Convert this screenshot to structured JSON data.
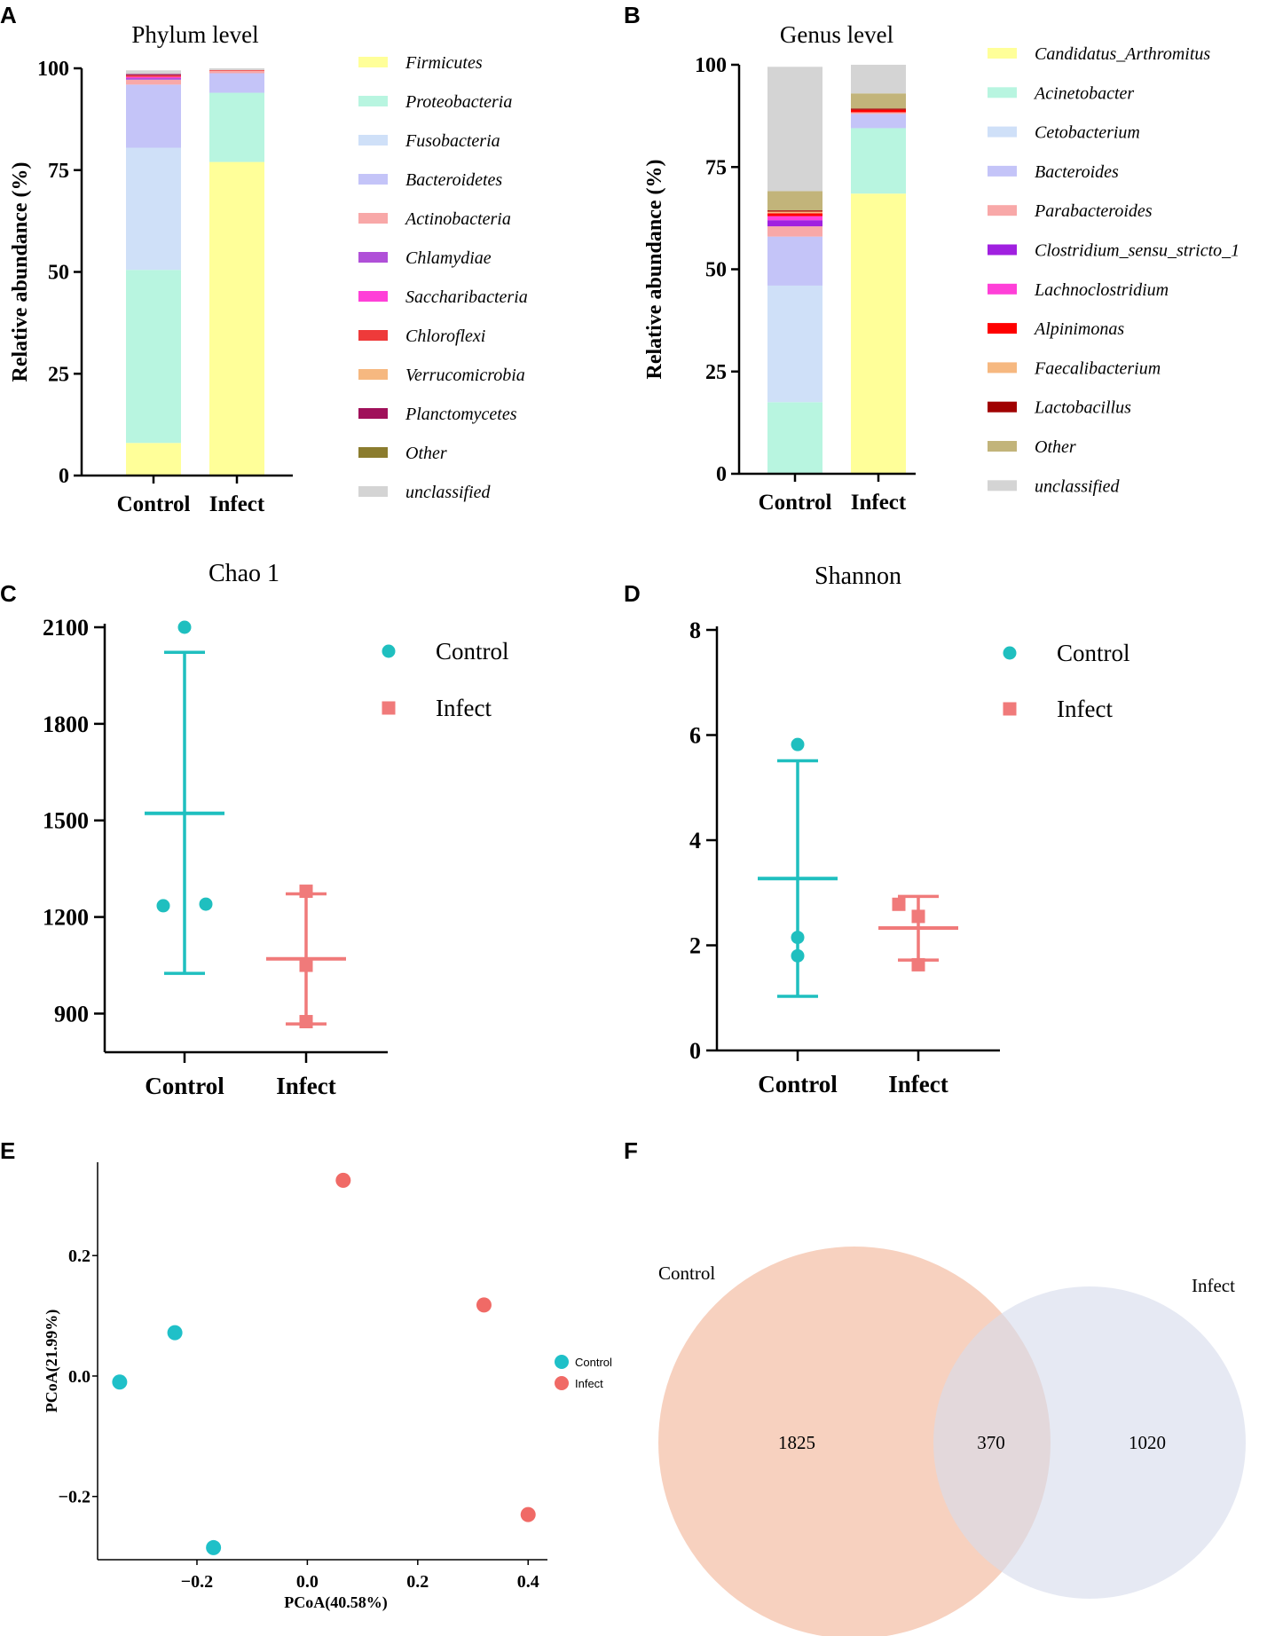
{
  "figure": {
    "panel_letters": [
      "A",
      "B",
      "C",
      "D",
      "E",
      "F"
    ]
  },
  "colors": {
    "Firmicutes": "#ffff99",
    "Proteobacteria": "#b8f5e0",
    "Fusobacteria": "#cfe0f8",
    "Bacteroidetes": "#c4c4f8",
    "Actinobacteria": "#f8a8a8",
    "Chlamydiae": "#b050d8",
    "Saccharibacteria": "#ff40d8",
    "Chloroflexi": "#ee3a3a",
    "Verrucomicrobia": "#f6b880",
    "Planctomycetes": "#a0105a",
    "Other": "#8b7c2e",
    "unclassified": "#d4d4d4",
    "Candidatus_Arthromitus": "#ffff99",
    "Acinetobacter": "#b8f5e0",
    "Cetobacterium": "#cfe0f8",
    "Bacteroides": "#c4c4f8",
    "Parabacteroides": "#f8a8a8",
    "Clostridium_sensu_stricto_1": "#a020e0",
    "Lachnoclostridium": "#ff40d8",
    "Alpinimonas": "#ff0000",
    "Faecalibacterium": "#f6b880",
    "Lactobacillus": "#a00000",
    "Other_genus": "#c2b47a",
    "control": "#1fbfbf",
    "infect": "#f07a7a",
    "control_pcoa": "#1fc0c8",
    "infect_pcoa": "#f06a66",
    "venn_control": "#f6c9b4",
    "venn_infect": "#d6dcec"
  },
  "chart_data": [
    {
      "panel": "A",
      "type": "bar",
      "stacked": true,
      "title": "Phylum level",
      "categories": [
        "Control",
        "Infect"
      ],
      "ylabel": "Relative abundance (%)",
      "xlabel": "",
      "ylim": [
        0,
        100
      ],
      "yticks": [
        0,
        25,
        50,
        75,
        100
      ],
      "series": [
        {
          "name": "Firmicutes",
          "color_key": "Firmicutes",
          "values": [
            8,
            77
          ]
        },
        {
          "name": "Proteobacteria",
          "color_key": "Proteobacteria",
          "values": [
            42.5,
            17
          ]
        },
        {
          "name": "Fusobacteria",
          "color_key": "Fusobacteria",
          "values": [
            30,
            0
          ]
        },
        {
          "name": "Bacteroidetes",
          "color_key": "Bacteroidetes",
          "values": [
            15.5,
            4.8
          ]
        },
        {
          "name": "Actinobacteria",
          "color_key": "Actinobacteria",
          "values": [
            1.2,
            0.6
          ]
        },
        {
          "name": "Chlamydiae",
          "color_key": "Chlamydiae",
          "values": [
            0.4,
            0
          ]
        },
        {
          "name": "Saccharibacteria",
          "color_key": "Saccharibacteria",
          "values": [
            0.3,
            0
          ]
        },
        {
          "name": "Chloroflexi",
          "color_key": "Chloroflexi",
          "values": [
            0.4,
            0.2
          ]
        },
        {
          "name": "Verrucomicrobia",
          "color_key": "Verrucomicrobia",
          "values": [
            0,
            0
          ]
        },
        {
          "name": "Planctomycetes",
          "color_key": "Planctomycetes",
          "values": [
            0.3,
            0
          ]
        },
        {
          "name": "Other",
          "color_key": "Other",
          "values": [
            0,
            0
          ]
        },
        {
          "name": "unclassified",
          "color_key": "unclassified",
          "values": [
            0.9,
            0.4
          ]
        }
      ]
    },
    {
      "panel": "B",
      "type": "bar",
      "stacked": true,
      "title": "Genus level",
      "categories": [
        "Control",
        "Infect"
      ],
      "ylabel": "Relative abundance (%)",
      "xlabel": "",
      "ylim": [
        0,
        100
      ],
      "yticks": [
        0,
        25,
        50,
        75,
        100
      ],
      "series": [
        {
          "name": "Candidatus_Arthromitus",
          "color_key": "Candidatus_Arthromitus",
          "values": [
            0,
            68.5
          ]
        },
        {
          "name": "Acinetobacter",
          "color_key": "Acinetobacter",
          "values": [
            17.5,
            16
          ]
        },
        {
          "name": "Cetobacterium",
          "color_key": "Cetobacterium",
          "values": [
            28.5,
            0
          ]
        },
        {
          "name": "Bacteroides",
          "color_key": "Bacteroides",
          "values": [
            12,
            3.5
          ]
        },
        {
          "name": "Parabacteroides",
          "color_key": "Parabacteroides",
          "values": [
            2.5,
            0.4
          ]
        },
        {
          "name": "Clostridium_sensu_stricto_1",
          "color_key": "Clostridium_sensu_stricto_1",
          "values": [
            1.5,
            0
          ]
        },
        {
          "name": "Lachnoclostridium",
          "color_key": "Lachnoclostridium",
          "values": [
            1.0,
            0
          ]
        },
        {
          "name": "Alpinimonas",
          "color_key": "Alpinimonas",
          "values": [
            0.7,
            0.6
          ]
        },
        {
          "name": "Faecalibacterium",
          "color_key": "Faecalibacterium",
          "values": [
            0.4,
            0
          ]
        },
        {
          "name": "Lactobacillus",
          "color_key": "Lactobacillus",
          "values": [
            0.3,
            0.3
          ]
        },
        {
          "name": "Other",
          "color_key": "Other_genus",
          "values": [
            4.7,
            3.7
          ]
        },
        {
          "name": "unclassified",
          "color_key": "unclassified",
          "values": [
            30.4,
            7
          ]
        }
      ]
    },
    {
      "panel": "C",
      "type": "scatter",
      "title": "Chao 1",
      "categories": [
        "Control",
        "Infect"
      ],
      "ylabel": "",
      "xlabel": "",
      "ylim": [
        780,
        2100
      ],
      "yticks": [
        900,
        1200,
        1500,
        1800,
        2100
      ],
      "groups": [
        {
          "name": "Control",
          "marker": "circle",
          "color_key": "control",
          "points": [
            2100,
            1235,
            1240
          ],
          "jitter": [
            0,
            -0.24,
            0.24
          ],
          "mean": 1522,
          "sd_low": 1025,
          "sd_high": 2022
        },
        {
          "name": "Infect",
          "marker": "square",
          "color_key": "infect",
          "points": [
            1280,
            1050,
            875
          ],
          "jitter": [
            0,
            0,
            0
          ],
          "mean": 1070,
          "sd_low": 868,
          "sd_high": 1272
        }
      ]
    },
    {
      "panel": "D",
      "type": "scatter",
      "title": "Shannon",
      "categories": [
        "Control",
        "Infect"
      ],
      "ylabel": "",
      "xlabel": "",
      "ylim": [
        0,
        8
      ],
      "yticks": [
        0,
        2,
        4,
        6,
        8
      ],
      "groups": [
        {
          "name": "Control",
          "marker": "circle",
          "color_key": "control",
          "points": [
            5.82,
            2.15,
            1.8
          ],
          "jitter": [
            0,
            0,
            0
          ],
          "mean": 3.27,
          "sd_low": 1.03,
          "sd_high": 5.51
        },
        {
          "name": "Infect",
          "marker": "square",
          "color_key": "infect",
          "points": [
            2.78,
            2.55,
            1.63
          ],
          "jitter": [
            -0.22,
            0,
            0
          ],
          "mean": 2.33,
          "sd_low": 1.72,
          "sd_high": 2.93
        }
      ]
    },
    {
      "panel": "E",
      "type": "scatter",
      "title": "",
      "xlabel": "PCoA(40.58%)",
      "ylabel": "PCoA(21.99%)",
      "xlim": [
        -0.38,
        0.435
      ],
      "ylim": [
        -0.305,
        0.355
      ],
      "xticks": [
        -0.2,
        0.0,
        0.2,
        0.4
      ],
      "yticks": [
        -0.2,
        0.0,
        0.2
      ],
      "xtick_labels": [
        "−0.2",
        "0.0",
        "0.2",
        "0.4"
      ],
      "ytick_labels": [
        "−0.2",
        "0.0",
        "0.2"
      ],
      "series": [
        {
          "name": "Control",
          "color_key": "control_pcoa",
          "points": [
            [
              -0.34,
              -0.01
            ],
            [
              -0.24,
              0.072
            ],
            [
              -0.17,
              -0.285
            ]
          ]
        },
        {
          "name": "Infect",
          "color_key": "infect_pcoa",
          "points": [
            [
              0.065,
              0.325
            ],
            [
              0.32,
              0.118
            ],
            [
              0.4,
              -0.23
            ]
          ]
        }
      ]
    },
    {
      "panel": "F",
      "type": "venn",
      "title": "",
      "sets": [
        {
          "name": "Control",
          "color_key": "venn_control",
          "size": 2195
        },
        {
          "name": "Infect",
          "color_key": "venn_infect",
          "size": 1390
        }
      ],
      "regions": {
        "control_only": "1825",
        "shared": "370",
        "infect_only": "1020"
      }
    }
  ]
}
